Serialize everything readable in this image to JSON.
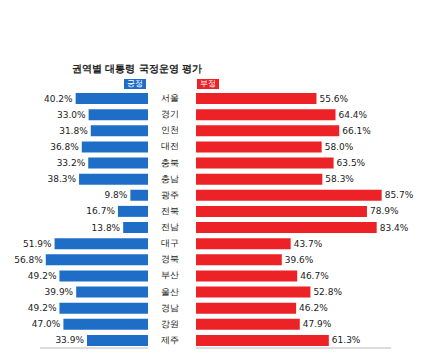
{
  "chart_data": [
    {
      "type": "bar",
      "orientation": "horizontal",
      "title": "권역별 대통령 국정운영 평가",
      "categories": [
        "서울",
        "경기",
        "인천",
        "대전",
        "충북",
        "충남",
        "광주",
        "전북",
        "전남",
        "대구",
        "경북",
        "부산",
        "울산",
        "경남",
        "강원",
        "제주"
      ],
      "series": [
        {
          "name": "긍정",
          "color": "#1e6ec8",
          "values": [
            40.2,
            33.0,
            31.8,
            36.8,
            33.2,
            38.3,
            9.8,
            16.7,
            13.8,
            51.9,
            56.8,
            49.2,
            39.9,
            49.2,
            47.0,
            33.9
          ],
          "value_labels": [
            "40.2%",
            "33.0%",
            "31.8%",
            "36.8%",
            "33.2%",
            "38.3%",
            "9.8%",
            "16.7%",
            "13.8%",
            "51.9%",
            "56.8%",
            "49.2%",
            "39.9%",
            "49.2%",
            "47.0%",
            "33.9%"
          ]
        }
      ],
      "xlim": [
        0,
        60
      ],
      "data_labels": true,
      "tick_labels": false
    },
    {
      "type": "bar",
      "orientation": "horizontal",
      "categories": [
        "서울",
        "경기",
        "인천",
        "대전",
        "충북",
        "충남",
        "광주",
        "전북",
        "전남",
        "대구",
        "경북",
        "부산",
        "울산",
        "경남",
        "강원",
        "제주"
      ],
      "series": [
        {
          "name": "부정",
          "color": "#ec2227",
          "values": [
            55.6,
            64.4,
            66.1,
            58.0,
            63.5,
            58.3,
            85.7,
            78.9,
            83.4,
            43.7,
            39.6,
            46.7,
            52.8,
            46.2,
            47.9,
            61.3
          ],
          "value_labels": [
            "55.6%",
            "64.4%",
            "66.1%",
            "58.0%",
            "63.5%",
            "58.3%",
            "85.7%",
            "78.9%",
            "83.4%",
            "43.7%",
            "39.6%",
            "46.7%",
            "52.8%",
            "46.2%",
            "47.9%",
            "61.3%"
          ]
        }
      ],
      "xlim": [
        0,
        90
      ],
      "data_labels": true,
      "tick_labels": "y"
    }
  ]
}
